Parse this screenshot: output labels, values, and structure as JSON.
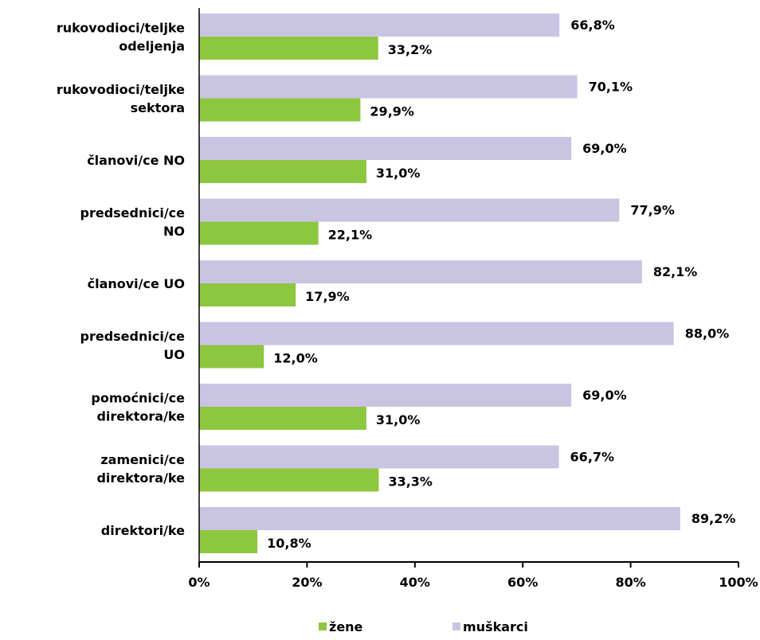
{
  "chart_data": {
    "type": "bar",
    "orientation": "horizontal",
    "categories": [
      [
        "rukovodioci/teljke",
        "odeljenja"
      ],
      [
        "rukovodioci/teljke",
        "sektora"
      ],
      [
        "članovi/ce NO"
      ],
      [
        "predsednici/ce",
        "NO"
      ],
      [
        "članovi/ce UO"
      ],
      [
        "predsednici/ce",
        "UO"
      ],
      [
        "pomoćnici/ce",
        "direktora/ke"
      ],
      [
        "zamenici/ce",
        "direktora/ke"
      ],
      [
        "direktori/ke"
      ]
    ],
    "series": [
      {
        "name": "muškarci",
        "color": "#c9c4e2",
        "values": [
          66.8,
          70.1,
          69.0,
          77.9,
          82.1,
          88.0,
          69.0,
          66.7,
          89.2
        ],
        "labels": [
          "66,8%",
          "70,1%",
          "69,0%",
          "77,9%",
          "82,1%",
          "88,0%",
          "69,0%",
          "66,7%",
          "89,2%"
        ]
      },
      {
        "name": "žene",
        "color": "#8dc63f",
        "values": [
          33.2,
          29.9,
          31.0,
          22.1,
          17.9,
          12.0,
          31.0,
          33.3,
          10.8
        ],
        "labels": [
          "33,2%",
          "29,9%",
          "31,0%",
          "22,1%",
          "17,9%",
          "12,0%",
          "31,0%",
          "33,3%",
          "10,8%"
        ]
      }
    ],
    "xlim": [
      0,
      100
    ],
    "xticks": [
      0,
      20,
      40,
      60,
      80,
      100
    ],
    "xtick_labels": [
      "0%",
      "20%",
      "40%",
      "60%",
      "80%",
      "100%"
    ],
    "grid": false,
    "legend": {
      "position": "bottom",
      "items": [
        {
          "name": "žene",
          "color": "#8dc63f"
        },
        {
          "name": "muškarci",
          "color": "#c9c4e2"
        }
      ]
    }
  }
}
